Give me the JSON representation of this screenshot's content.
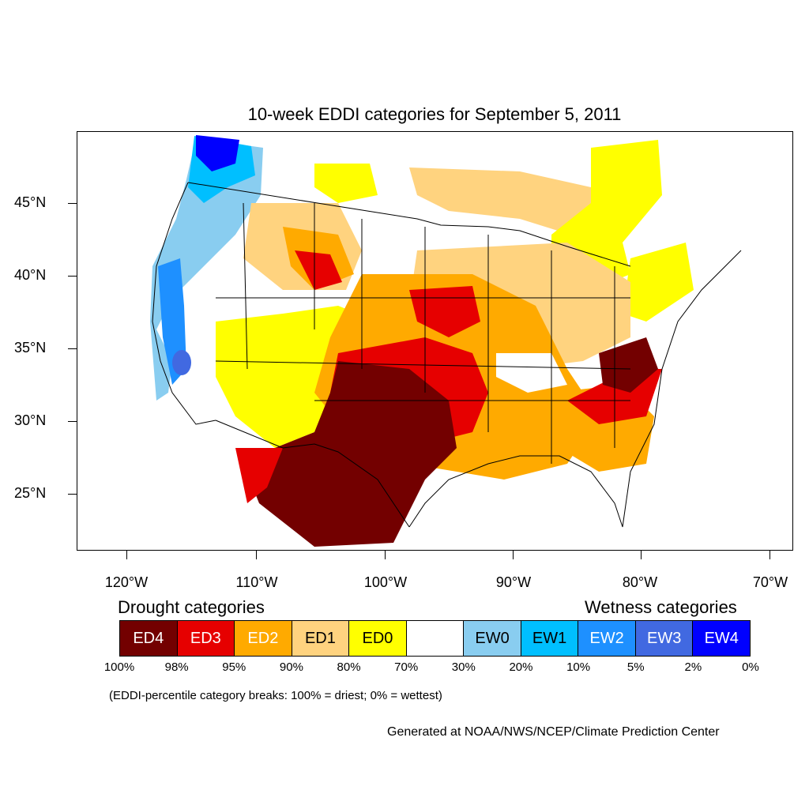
{
  "title": "10-week EDDI categories for September 5, 2011",
  "map": {
    "lat_labels": [
      "45°N",
      "40°N",
      "35°N",
      "30°N",
      "25°N"
    ],
    "lon_labels": [
      "120°W",
      "110°W",
      "100°W",
      "90°W",
      "80°W",
      "70°W"
    ],
    "fill_colors": {
      "ED4": "#730000",
      "ED3": "#e60000",
      "ED2": "#ffaa00",
      "ED1": "#ffd37f",
      "ED0": "#ffff00",
      "EW0": "#89cdf0",
      "EW1": "#00bfff",
      "EW2": "#1e90ff",
      "EW3": "#4169e1",
      "EW4": "#0000ff"
    }
  },
  "legend": {
    "drought_heading": "Drought categories",
    "wetness_heading": "Wetness categories",
    "categories": [
      {
        "label": "ED4",
        "color": "#730000",
        "text_color": "#ffffff"
      },
      {
        "label": "ED3",
        "color": "#e60000",
        "text_color": "#ffffff"
      },
      {
        "label": "ED2",
        "color": "#ffaa00",
        "text_color": "#ffffff"
      },
      {
        "label": "ED1",
        "color": "#ffd37f",
        "text_color": "#000000"
      },
      {
        "label": "ED0",
        "color": "#ffff00",
        "text_color": "#000000"
      },
      {
        "label": "",
        "color": "#ffffff",
        "text_color": "#000000"
      },
      {
        "label": "EW0",
        "color": "#89cdf0",
        "text_color": "#000000"
      },
      {
        "label": "EW1",
        "color": "#00bfff",
        "text_color": "#000000"
      },
      {
        "label": "EW2",
        "color": "#1e90ff",
        "text_color": "#ffffff"
      },
      {
        "label": "EW3",
        "color": "#4169e1",
        "text_color": "#ffffff"
      },
      {
        "label": "EW4",
        "color": "#0000ff",
        "text_color": "#ffffff"
      }
    ],
    "breaks": [
      "100%",
      "98%",
      "95%",
      "90%",
      "80%",
      "70%",
      "30%",
      "20%",
      "10%",
      "5%",
      "2%",
      "0%"
    ]
  },
  "note": "(EDDI-percentile category breaks: 100% = driest; 0% = wettest)",
  "credit": "Generated at NOAA/NWS/NCEP/Climate Prediction Center"
}
